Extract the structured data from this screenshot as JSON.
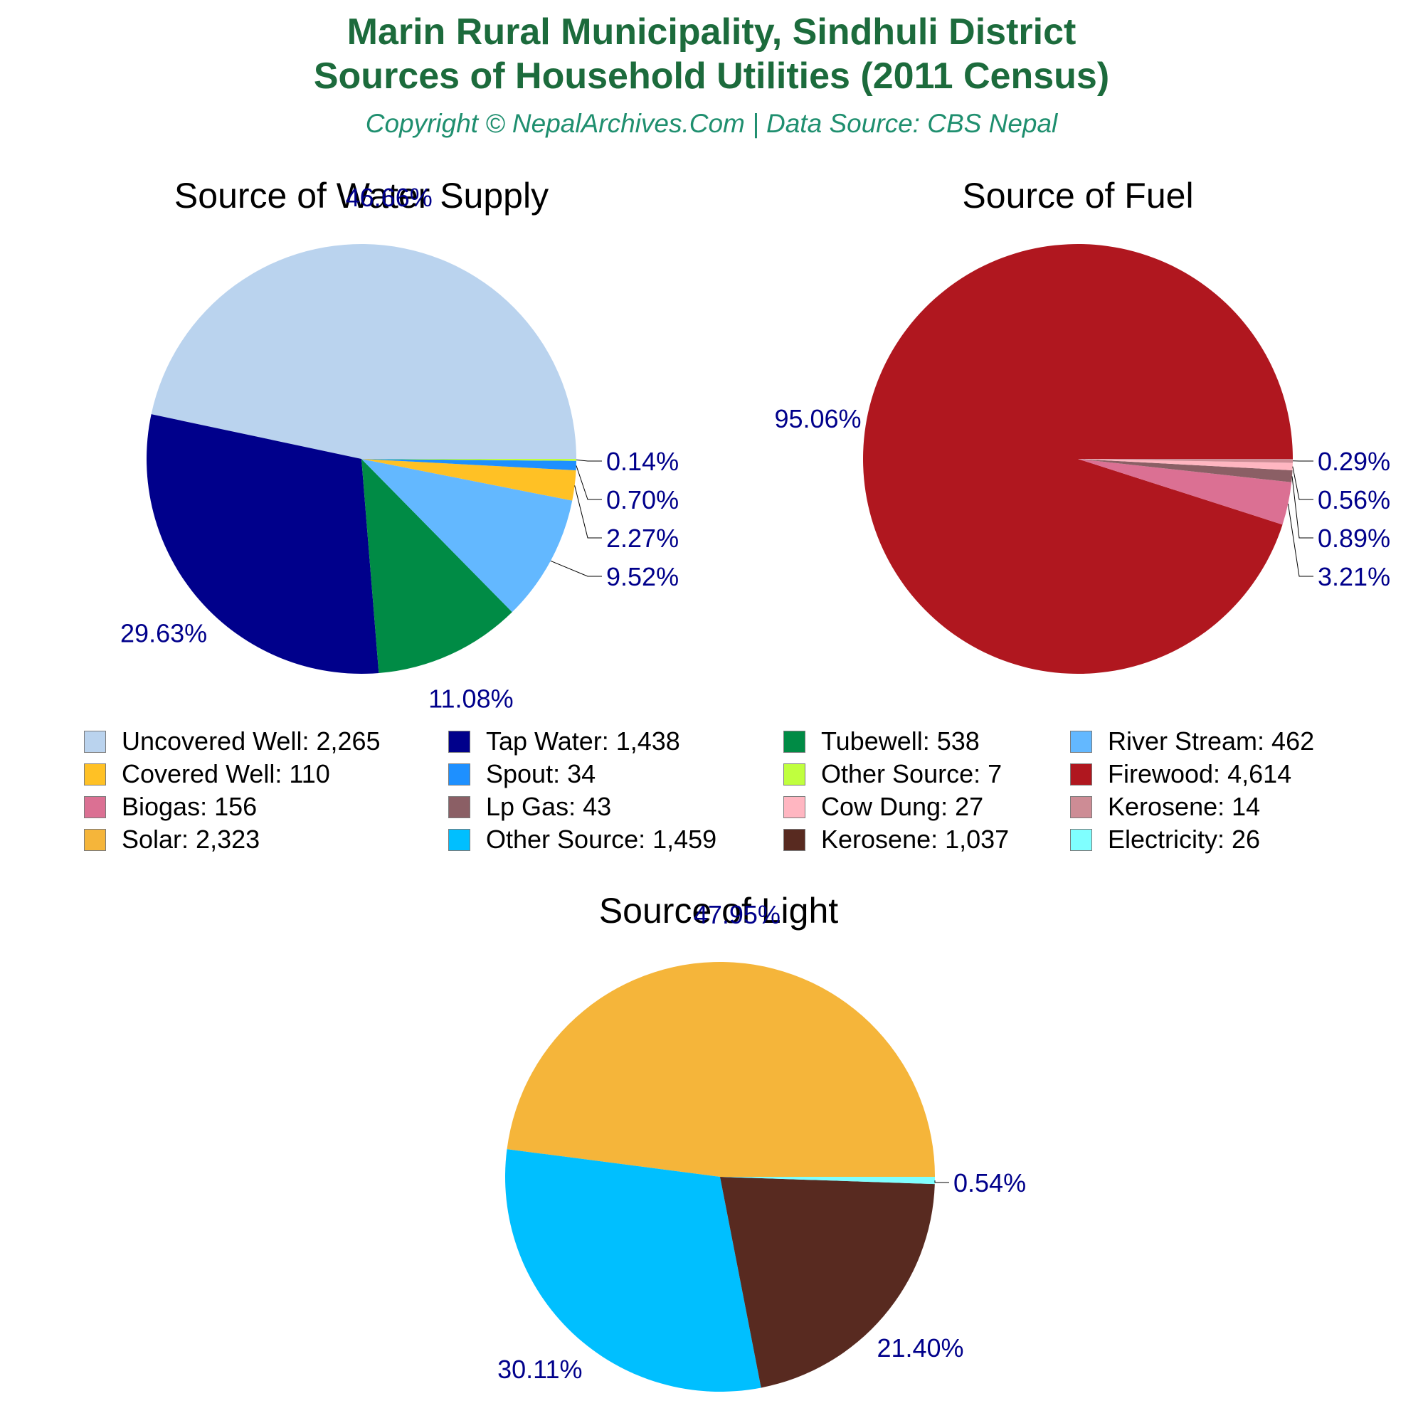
{
  "header": {
    "title_line1": "Marin Rural Municipality, Sindhuli District",
    "title_line2": "Sources of Household Utilities (2011 Census)",
    "subtitle": "Copyright © NepalArchives.Com | Data Source: CBS Nepal"
  },
  "colors": {
    "title": "#1c6b3c",
    "subtitle": "#1f8f6f",
    "percent_label": "#00008b"
  },
  "chart_data": [
    {
      "type": "pie",
      "title": "Source of Water Supply",
      "slices": [
        {
          "name": "Uncovered Well",
          "value": 2265,
          "percent_label": "46.66%",
          "color": "#bad3ee"
        },
        {
          "name": "Tap Water",
          "value": 1438,
          "percent_label": "29.63%",
          "color": "#00008b"
        },
        {
          "name": "Tubewell",
          "value": 538,
          "percent_label": "11.08%",
          "color": "#008b45"
        },
        {
          "name": "River Stream",
          "value": 462,
          "percent_label": "9.52%",
          "color": "#63b8ff"
        },
        {
          "name": "Covered Well",
          "value": 110,
          "percent_label": "2.27%",
          "color": "#ffc125"
        },
        {
          "name": "Spout",
          "value": 34,
          "percent_label": "0.70%",
          "color": "#1e90ff"
        },
        {
          "name": "Other Source",
          "value": 7,
          "percent_label": "0.14%",
          "color": "#c0ff3e"
        }
      ]
    },
    {
      "type": "pie",
      "title": "Source of Fuel",
      "slices": [
        {
          "name": "Firewood",
          "value": 4614,
          "percent_label": "95.06%",
          "color": "#b0171f"
        },
        {
          "name": "Biogas",
          "value": 156,
          "percent_label": "3.21%",
          "color": "#db7093"
        },
        {
          "name": "Lp Gas",
          "value": 43,
          "percent_label": "0.89%",
          "color": "#8b5f65"
        },
        {
          "name": "Cow Dung",
          "value": 27,
          "percent_label": "0.56%",
          "color": "#ffb6c1"
        },
        {
          "name": "Kerosene",
          "value": 14,
          "percent_label": "0.29%",
          "color": "#cd8c95"
        }
      ]
    },
    {
      "type": "pie",
      "title": "Source of Light",
      "slices": [
        {
          "name": "Solar",
          "value": 2323,
          "percent_label": "47.95%",
          "color": "#f5b53a"
        },
        {
          "name": "Other Source",
          "value": 1459,
          "percent_label": "30.11%",
          "color": "#00bfff"
        },
        {
          "name": "Kerosene",
          "value": 1037,
          "percent_label": "21.40%",
          "color": "#582a20"
        },
        {
          "name": "Electricity",
          "value": 26,
          "percent_label": "0.54%",
          "color": "#7fffff"
        }
      ]
    }
  ],
  "legend": [
    {
      "label": "Uncovered Well: 2,265",
      "color": "#bad3ee"
    },
    {
      "label": "Tap Water: 1,438",
      "color": "#00008b"
    },
    {
      "label": "Tubewell: 538",
      "color": "#008b45"
    },
    {
      "label": "River Stream: 462",
      "color": "#63b8ff"
    },
    {
      "label": "Covered Well: 110",
      "color": "#ffc125"
    },
    {
      "label": "Spout: 34",
      "color": "#1e90ff"
    },
    {
      "label": "Other Source: 7",
      "color": "#c0ff3e"
    },
    {
      "label": "Firewood: 4,614",
      "color": "#b0171f"
    },
    {
      "label": "Biogas: 156",
      "color": "#db7093"
    },
    {
      "label": "Lp Gas: 43",
      "color": "#8b5f65"
    },
    {
      "label": "Cow Dung: 27",
      "color": "#ffb6c1"
    },
    {
      "label": "Kerosene: 14",
      "color": "#cd8c95"
    },
    {
      "label": "Solar: 2,323",
      "color": "#f5b53a"
    },
    {
      "label": "Other Source: 1,459",
      "color": "#00bfff"
    },
    {
      "label": "Kerosene: 1,037",
      "color": "#582a20"
    },
    {
      "label": "Electricity: 26",
      "color": "#7fffff"
    }
  ]
}
